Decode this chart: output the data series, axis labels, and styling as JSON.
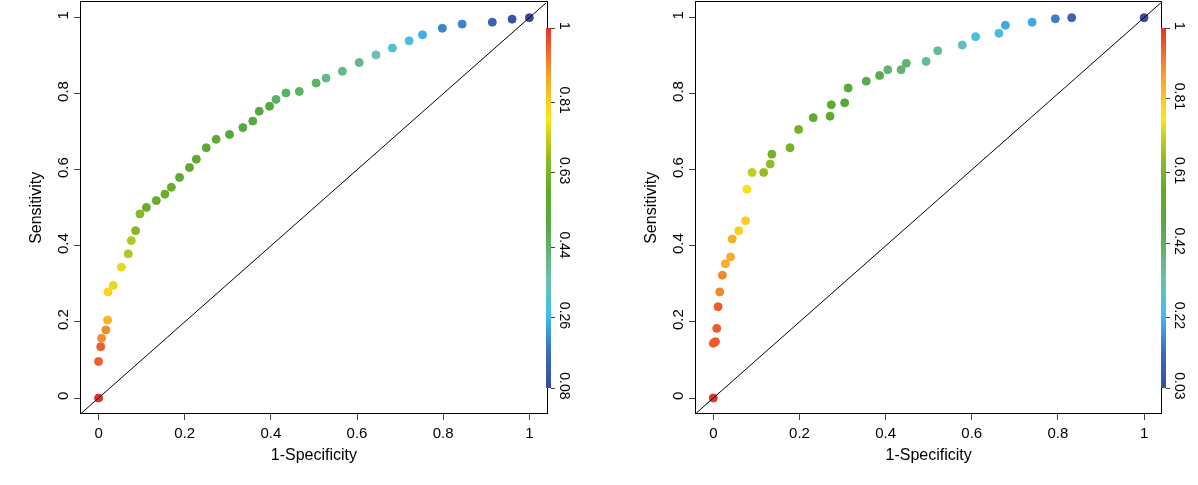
{
  "chart_data": [
    {
      "type": "scatter",
      "xlabel": "1-Specificity",
      "ylabel": "Sensitivity",
      "xlim": [
        -0.04,
        1.04
      ],
      "ylim": [
        -0.04,
        1.04
      ],
      "xticks": [
        0,
        0.2,
        0.4,
        0.6,
        0.8,
        1
      ],
      "yticks": [
        0,
        0.2,
        0.4,
        0.6,
        0.8,
        1
      ],
      "clim": [
        0.08,
        1
      ],
      "cticks": [
        0.08,
        0.26,
        0.44,
        0.63,
        0.81,
        1
      ],
      "series": [
        {
          "marker": "circle",
          "x": [
            0,
            0,
            0.005,
            0.007,
            0.017,
            0.021,
            0.022,
            0.034,
            0.053,
            0.069,
            0.076,
            0.086,
            0.096,
            0.111,
            0.134,
            0.154,
            0.169,
            0.188,
            0.211,
            0.227,
            0.25,
            0.273,
            0.304,
            0.335,
            0.358,
            0.373,
            0.397,
            0.412,
            0.435,
            0.466,
            0.505,
            0.528,
            0.566,
            0.605,
            0.644,
            0.682,
            0.721,
            0.752,
            0.798,
            0.844,
            0.914,
            0.96,
            1
          ],
          "values": [
            0,
            0.096,
            0.135,
            0.157,
            0.179,
            0.205,
            0.279,
            0.296,
            0.344,
            0.379,
            0.414,
            0.44,
            0.484,
            0.501,
            0.519,
            0.536,
            0.554,
            0.58,
            0.606,
            0.628,
            0.658,
            0.68,
            0.693,
            0.711,
            0.728,
            0.754,
            0.767,
            0.785,
            0.802,
            0.806,
            0.828,
            0.841,
            0.859,
            0.882,
            0.902,
            0.92,
            0.939,
            0.955,
            0.972,
            0.983,
            0.988,
            0.996,
            1
          ],
          "cvalues": [
            1,
            0.95,
            0.95,
            0.9,
            0.9,
            0.85,
            0.8,
            0.75,
            0.75,
            0.7,
            0.7,
            0.65,
            0.65,
            0.6,
            0.6,
            0.6,
            0.6,
            0.55,
            0.55,
            0.55,
            0.55,
            0.55,
            0.5,
            0.5,
            0.5,
            0.5,
            0.5,
            0.45,
            0.45,
            0.45,
            0.45,
            0.4,
            0.4,
            0.4,
            0.35,
            0.3,
            0.3,
            0.25,
            0.2,
            0.2,
            0.15,
            0.1,
            0.08
          ],
          "colors": [
            "#e8302a",
            "#ed5f2d",
            "#ed5f2d",
            "#f38e2f",
            "#f38e2f",
            "#f8b32a",
            "#fcd31f",
            "#e7dc1c",
            "#e7dc1c",
            "#b2c723",
            "#b2c723",
            "#87b629",
            "#87b629",
            "#6aad2b",
            "#6aad2b",
            "#6aad2b",
            "#6aad2b",
            "#5da933",
            "#5da933",
            "#5da933",
            "#5da933",
            "#5da933",
            "#56a93e",
            "#56a93e",
            "#56a93e",
            "#56a93e",
            "#56a93e",
            "#5db162",
            "#5db162",
            "#5db162",
            "#5db162",
            "#64b98a",
            "#64b98a",
            "#64b98a",
            "#69c0b4",
            "#4fbed7",
            "#4fbed7",
            "#3db1e7",
            "#3b85c9",
            "#3b85c9",
            "#3a64b2",
            "#3b52a5",
            "#3b4ba0"
          ]
        },
        {
          "type": "line",
          "marker": "none",
          "x": [
            -0.04,
            1.04
          ],
          "values": [
            -0.04,
            1.04
          ],
          "color": "#000000"
        }
      ]
    },
    {
      "type": "scatter",
      "xlabel": "1-Specificity",
      "ylabel": "Sensitivity",
      "xlim": [
        -0.04,
        1.04
      ],
      "ylim": [
        -0.04,
        1.04
      ],
      "xticks": [
        0,
        0.2,
        0.4,
        0.6,
        0.8,
        1
      ],
      "yticks": [
        0,
        0.2,
        0.4,
        0.6,
        0.8,
        1
      ],
      "clim": [
        0.03,
        1
      ],
      "cticks": [
        0.03,
        0.22,
        0.42,
        0.61,
        0.81,
        1
      ],
      "series": [
        {
          "marker": "circle",
          "x": [
            0,
            0,
            0.005,
            0.008,
            0.011,
            0.015,
            0.021,
            0.028,
            0.04,
            0.044,
            0.059,
            0.075,
            0.078,
            0.09,
            0.117,
            0.132,
            0.136,
            0.178,
            0.198,
            0.232,
            0.271,
            0.274,
            0.305,
            0.313,
            0.355,
            0.386,
            0.405,
            0.436,
            0.448,
            0.494,
            0.521,
            0.578,
            0.609,
            0.663,
            0.678,
            0.74,
            0.794,
            0.832,
            1
          ],
          "values": [
            0,
            0.144,
            0.148,
            0.183,
            0.24,
            0.279,
            0.323,
            0.353,
            0.371,
            0.418,
            0.44,
            0.466,
            0.549,
            0.593,
            0.593,
            0.615,
            0.641,
            0.658,
            0.706,
            0.737,
            0.741,
            0.771,
            0.776,
            0.815,
            0.833,
            0.848,
            0.863,
            0.863,
            0.88,
            0.885,
            0.913,
            0.928,
            0.95,
            0.959,
            0.98,
            0.988,
            0.997,
            1,
            1
          ],
          "cvalues": [
            1,
            0.95,
            0.95,
            0.95,
            0.95,
            0.9,
            0.9,
            0.85,
            0.85,
            0.85,
            0.8,
            0.8,
            0.75,
            0.7,
            0.65,
            0.65,
            0.6,
            0.6,
            0.6,
            0.55,
            0.55,
            0.55,
            0.5,
            0.5,
            0.45,
            0.45,
            0.4,
            0.4,
            0.4,
            0.35,
            0.35,
            0.3,
            0.25,
            0.25,
            0.2,
            0.2,
            0.15,
            0.1,
            0.03
          ],
          "colors": [
            "#e8302a",
            "#ed5c2c",
            "#ed5c2c",
            "#ed5c2c",
            "#ed5c2c",
            "#f2892f",
            "#f2892f",
            "#f7ae2b",
            "#f7ae2b",
            "#f7ae2b",
            "#fbcc21",
            "#fbcc21",
            "#f6e31a",
            "#c0cd21",
            "#94bb27",
            "#94bb27",
            "#76b12a",
            "#76b12a",
            "#76b12a",
            "#60aa2e",
            "#60aa2e",
            "#60aa2e",
            "#59a938",
            "#59a938",
            "#59ac4e",
            "#59ac4e",
            "#5fb46f",
            "#5fb46f",
            "#5fb46f",
            "#67bc98",
            "#67bc98",
            "#62bfbe",
            "#4abedf",
            "#4abedf",
            "#3ca9e2",
            "#3ca9e2",
            "#3b7fc5",
            "#3a63b1",
            "#3b4ba0"
          ]
        },
        {
          "type": "line",
          "marker": "none",
          "x": [
            -0.04,
            1.04
          ],
          "values": [
            -0.04,
            1.04
          ],
          "color": "#000000"
        }
      ]
    }
  ]
}
